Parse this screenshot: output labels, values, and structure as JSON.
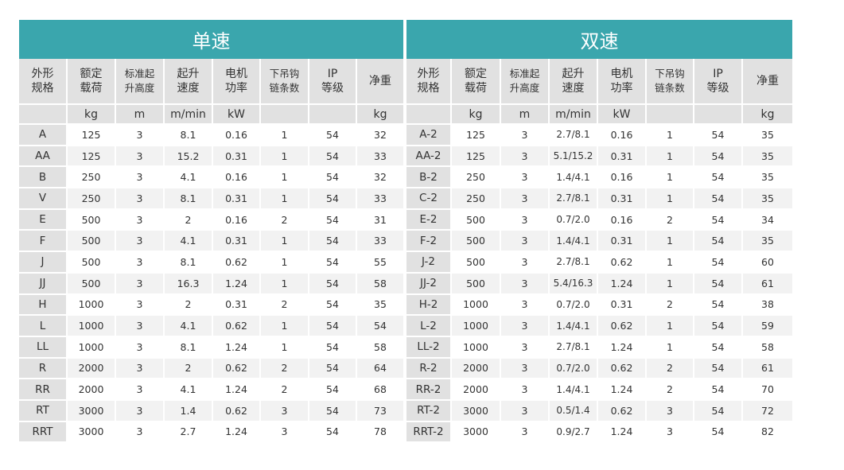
{
  "single": {
    "title": "单速",
    "headers": [
      {
        "l1": "外形",
        "l2": "规格",
        "small": false
      },
      {
        "l1": "额定",
        "l2": "载荷",
        "small": false
      },
      {
        "l1": "标准起",
        "l2": "升高度",
        "small": true
      },
      {
        "l1": "起升",
        "l2": "速度",
        "small": false
      },
      {
        "l1": "电机",
        "l2": "功率",
        "small": false
      },
      {
        "l1": "下吊钩",
        "l2": "链条数",
        "small": true
      },
      {
        "l1": "IP",
        "l2": "等级",
        "small": false
      },
      {
        "l1": "净重",
        "l2": "",
        "small": false
      }
    ],
    "units": [
      "",
      "kg",
      "m",
      "m/min",
      "kW",
      "",
      "",
      "kg"
    ],
    "rows": [
      [
        "A",
        "125",
        "3",
        "8.1",
        "0.16",
        "1",
        "54",
        "32"
      ],
      [
        "AA",
        "125",
        "3",
        "15.2",
        "0.31",
        "1",
        "54",
        "33"
      ],
      [
        "B",
        "250",
        "3",
        "4.1",
        "0.16",
        "1",
        "54",
        "32"
      ],
      [
        "V",
        "250",
        "3",
        "8.1",
        "0.31",
        "1",
        "54",
        "33"
      ],
      [
        "E",
        "500",
        "3",
        "2",
        "0.16",
        "2",
        "54",
        "31"
      ],
      [
        "F",
        "500",
        "3",
        "4.1",
        "0.31",
        "1",
        "54",
        "33"
      ],
      [
        "J",
        "500",
        "3",
        "8.1",
        "0.62",
        "1",
        "54",
        "55"
      ],
      [
        "JJ",
        "500",
        "3",
        "16.3",
        "1.24",
        "1",
        "54",
        "58"
      ],
      [
        "H",
        "1000",
        "3",
        "2",
        "0.31",
        "2",
        "54",
        "35"
      ],
      [
        "L",
        "1000",
        "3",
        "4.1",
        "0.62",
        "1",
        "54",
        "54"
      ],
      [
        "LL",
        "1000",
        "3",
        "8.1",
        "1.24",
        "1",
        "54",
        "58"
      ],
      [
        "R",
        "2000",
        "3",
        "2",
        "0.62",
        "2",
        "54",
        "64"
      ],
      [
        "RR",
        "2000",
        "3",
        "4.1",
        "1.24",
        "2",
        "54",
        "68"
      ],
      [
        "RT",
        "3000",
        "3",
        "1.4",
        "0.62",
        "3",
        "54",
        "73"
      ],
      [
        "RRT",
        "3000",
        "3",
        "2.7",
        "1.24",
        "3",
        "54",
        "78"
      ]
    ]
  },
  "dual": {
    "title": "双速",
    "headers": [
      {
        "l1": "外形",
        "l2": "规格",
        "small": false
      },
      {
        "l1": "额定",
        "l2": "载荷",
        "small": false
      },
      {
        "l1": "标准起",
        "l2": "升高度",
        "small": true
      },
      {
        "l1": "起升",
        "l2": "速度",
        "small": false
      },
      {
        "l1": "电机",
        "l2": "功率",
        "small": false
      },
      {
        "l1": "下吊钩",
        "l2": "链条数",
        "small": true
      },
      {
        "l1": "IP",
        "l2": "等级",
        "small": false
      },
      {
        "l1": "净重",
        "l2": "",
        "small": false
      }
    ],
    "units": [
      "",
      "kg",
      "m",
      "m/min",
      "kW",
      "",
      "",
      "kg"
    ],
    "rows": [
      [
        "A-2",
        "125",
        "3",
        "2.7/8.1",
        "0.16",
        "1",
        "54",
        "35"
      ],
      [
        "AA-2",
        "125",
        "3",
        "5.1/15.2",
        "0.31",
        "1",
        "54",
        "35"
      ],
      [
        "B-2",
        "250",
        "3",
        "1.4/4.1",
        "0.16",
        "1",
        "54",
        "35"
      ],
      [
        "C-2",
        "250",
        "3",
        "2.7/8.1",
        "0.31",
        "1",
        "54",
        "35"
      ],
      [
        "E-2",
        "500",
        "3",
        "0.7/2.0",
        "0.16",
        "2",
        "54",
        "34"
      ],
      [
        "F-2",
        "500",
        "3",
        "1.4/4.1",
        "0.31",
        "1",
        "54",
        "35"
      ],
      [
        "J-2",
        "500",
        "3",
        "2.7/8.1",
        "0.62",
        "1",
        "54",
        "60"
      ],
      [
        "JJ-2",
        "500",
        "3",
        "5.4/16.3",
        "1.24",
        "1",
        "54",
        "61"
      ],
      [
        "H-2",
        "1000",
        "3",
        "0.7/2.0",
        "0.31",
        "2",
        "54",
        "38"
      ],
      [
        "L-2",
        "1000",
        "3",
        "1.4/4.1",
        "0.62",
        "1",
        "54",
        "59"
      ],
      [
        "LL-2",
        "1000",
        "3",
        "2.7/8.1",
        "1.24",
        "1",
        "54",
        "58"
      ],
      [
        "R-2",
        "2000",
        "3",
        "0.7/2.0",
        "0.62",
        "2",
        "54",
        "61"
      ],
      [
        "RR-2",
        "2000",
        "3",
        "1.4/4.1",
        "1.24",
        "2",
        "54",
        "70"
      ],
      [
        "RT-2",
        "3000",
        "3",
        "0.5/1.4",
        "0.62",
        "3",
        "54",
        "72"
      ],
      [
        "RRT-2",
        "3000",
        "3",
        "0.9/2.7",
        "1.24",
        "3",
        "54",
        "82"
      ]
    ]
  }
}
